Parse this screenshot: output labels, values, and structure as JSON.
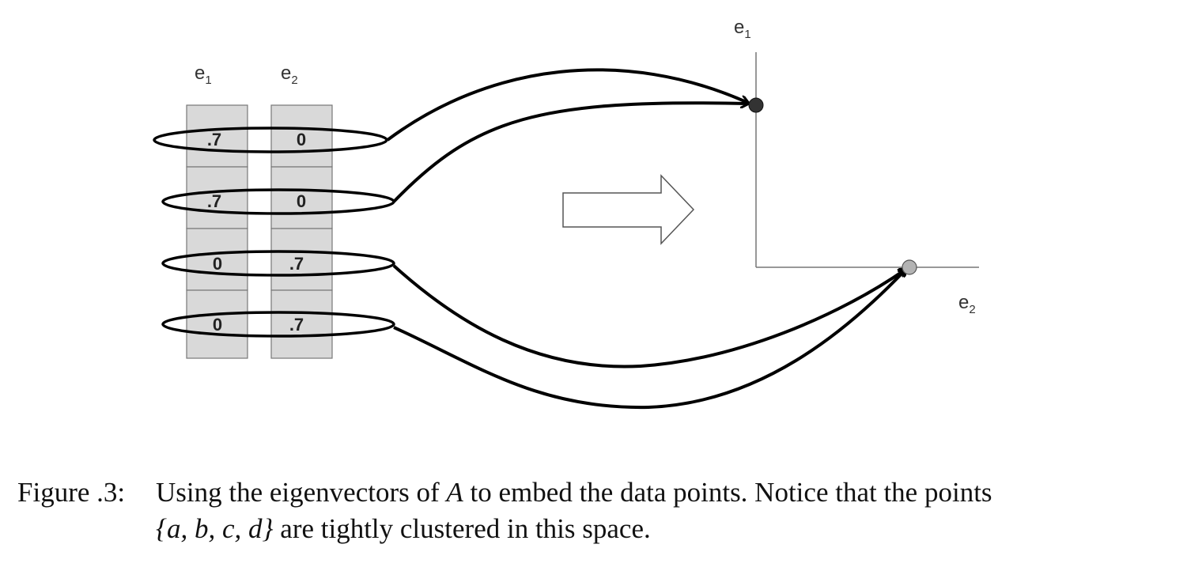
{
  "figure": {
    "column_labels": [
      {
        "main": "e",
        "sub": "1"
      },
      {
        "main": "e",
        "sub": "2"
      }
    ],
    "rows": [
      [
        ".7",
        "0"
      ],
      [
        ".7",
        "0"
      ],
      [
        "0",
        ".7"
      ],
      [
        "0",
        ".7"
      ]
    ],
    "axis_labels": {
      "vertical": {
        "main": "e",
        "sub": "1"
      },
      "horizontal": {
        "main": "e",
        "sub": "2"
      }
    },
    "colors": {
      "cell_fill": "#d9d9d9",
      "cell_stroke": "#777777",
      "point_e1": "#333333",
      "point_e2": "#b3b3b3",
      "arrow_stroke": "#000000"
    }
  },
  "caption": {
    "label": "Figure .3:",
    "line1_a": "Using the eigenvectors of",
    "line1_var": "A",
    "line1_b": "to embed the data points. Notice that the points",
    "line2_set": "{a, b, c, d}",
    "line2_rest": "are tightly clustered in this space."
  }
}
